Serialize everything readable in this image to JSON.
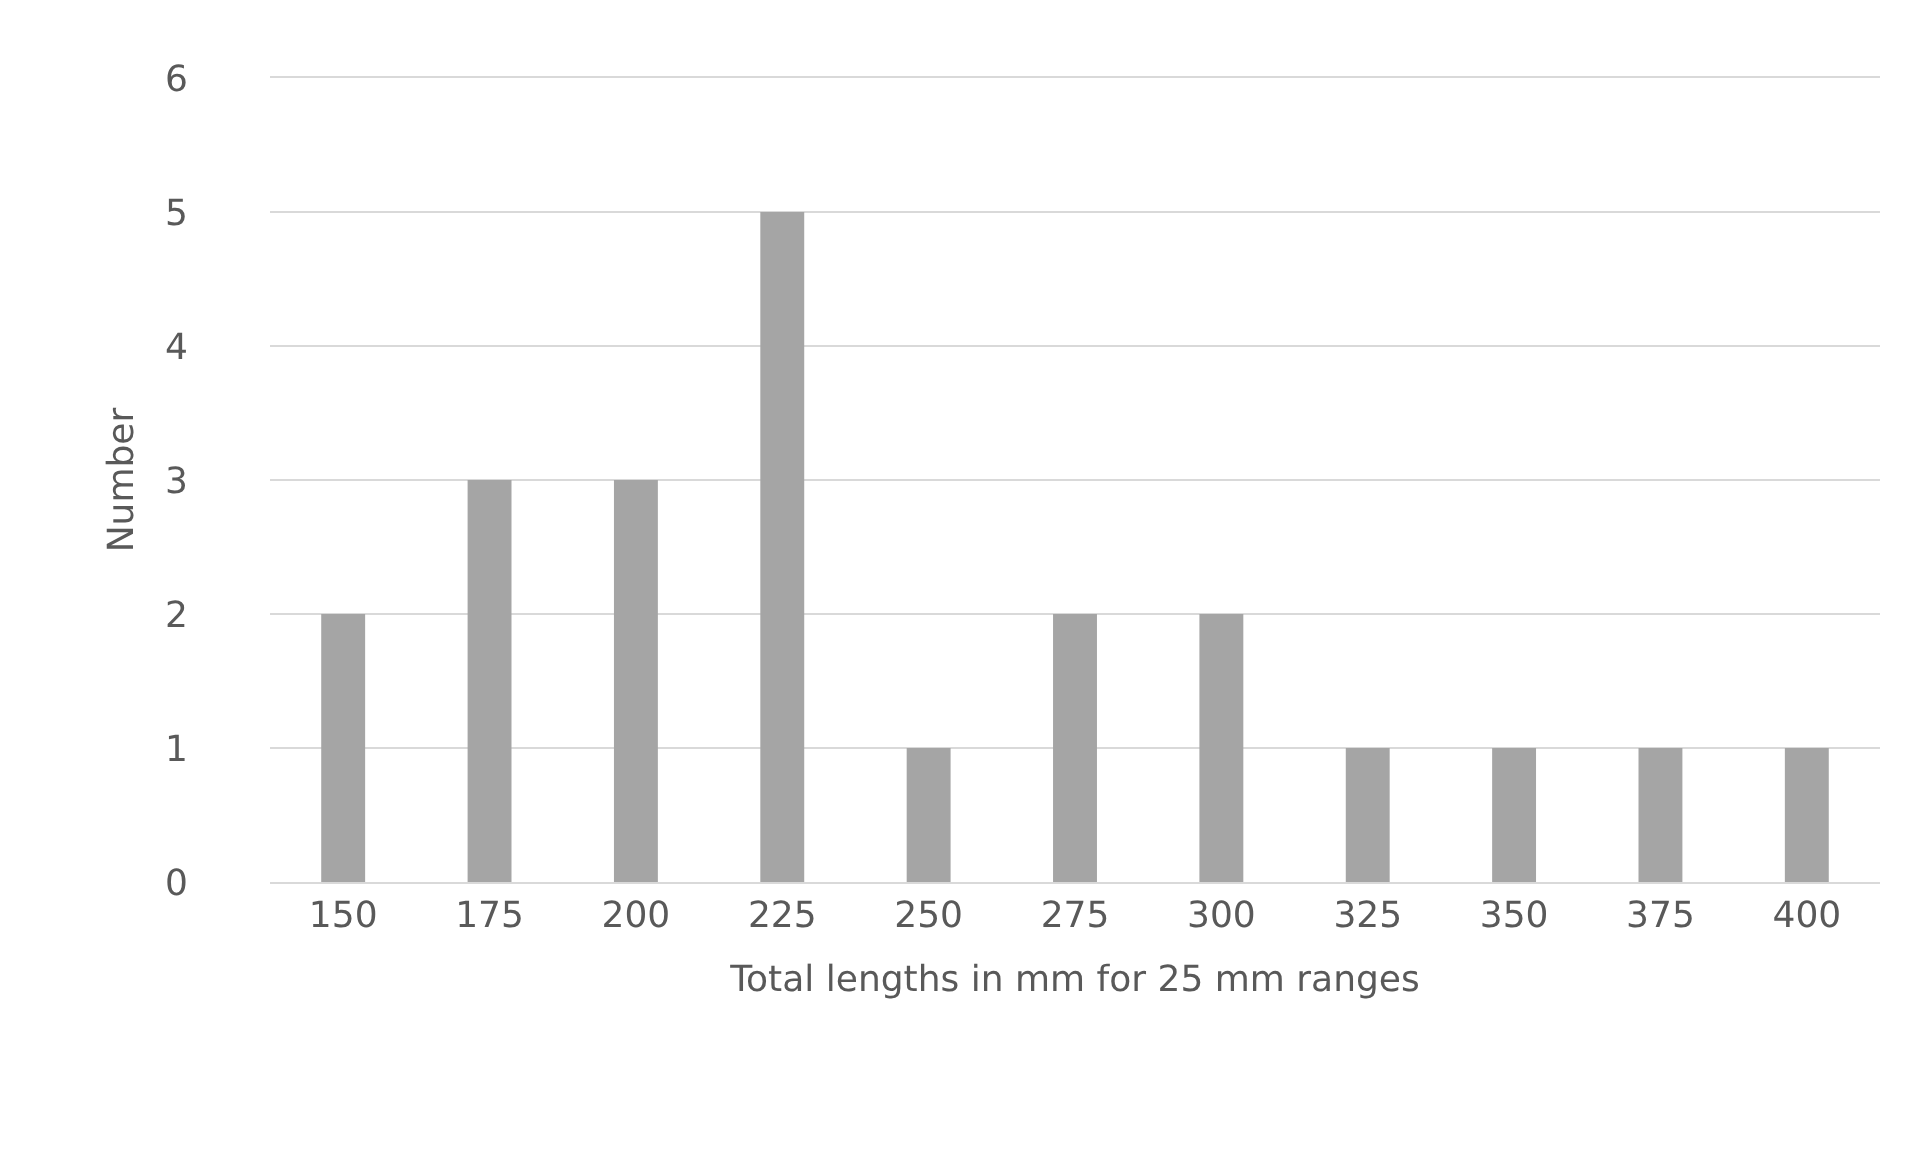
{
  "chart_data": {
    "type": "bar",
    "xlabel": "Total lengths in mm for 25 mm ranges",
    "ylabel": "Number",
    "categories": [
      "150",
      "175",
      "200",
      "225",
      "250",
      "275",
      "300",
      "325",
      "350",
      "375",
      "400"
    ],
    "values": [
      2,
      3,
      3,
      5,
      1,
      2,
      2,
      1,
      1,
      1,
      1
    ],
    "color": "#a5a5a5",
    "ylim": [
      0,
      6
    ],
    "yticks": [
      0,
      1,
      2,
      3,
      4,
      5,
      6
    ],
    "grid": "y"
  }
}
